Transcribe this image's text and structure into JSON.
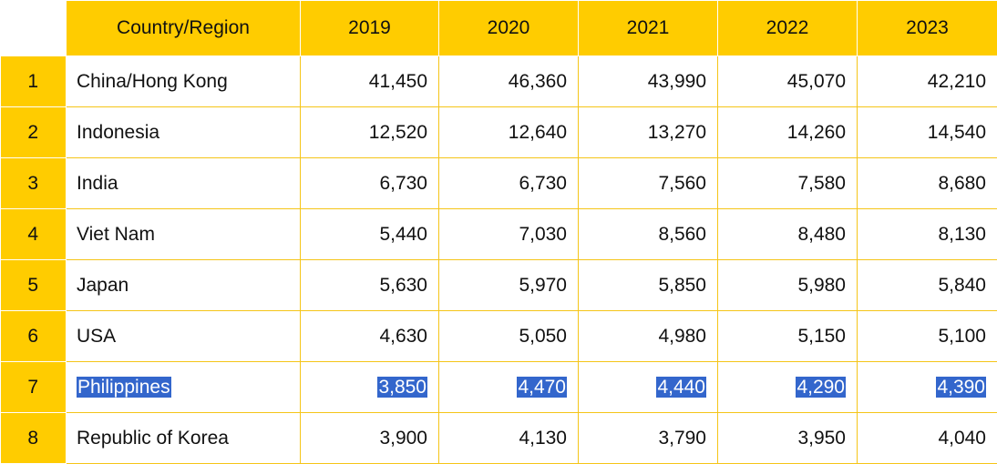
{
  "table": {
    "columns": [
      "",
      "Country/Region",
      "2019",
      "2020",
      "2021",
      "2022",
      "2023"
    ],
    "rows": [
      {
        "rank": "1",
        "country": "China/Hong Kong",
        "values": [
          "41,450",
          "46,360",
          "43,990",
          "45,070",
          "42,210"
        ]
      },
      {
        "rank": "2",
        "country": "Indonesia",
        "values": [
          "12,520",
          "12,640",
          "13,270",
          "14,260",
          "14,540"
        ]
      },
      {
        "rank": "3",
        "country": "India",
        "values": [
          "6,730",
          "6,730",
          "7,560",
          "7,580",
          "8,680"
        ]
      },
      {
        "rank": "4",
        "country": "Viet Nam",
        "values": [
          "5,440",
          "7,030",
          "8,560",
          "8,480",
          "8,130"
        ]
      },
      {
        "rank": "5",
        "country": "Japan",
        "values": [
          "5,630",
          "5,970",
          "5,850",
          "5,980",
          "5,840"
        ]
      },
      {
        "rank": "6",
        "country": "USA",
        "values": [
          "4,630",
          "5,050",
          "4,980",
          "5,150",
          "5,100"
        ]
      },
      {
        "rank": "7",
        "country": "Philippines",
        "values": [
          "3,850",
          "4,470",
          "4,440",
          "4,290",
          "4,390"
        ],
        "selected": true
      },
      {
        "rank": "8",
        "country": "Republic of Korea",
        "values": [
          "3,900",
          "4,130",
          "3,790",
          "3,950",
          "4,040"
        ]
      }
    ]
  },
  "colors": {
    "header": "#ffcc00",
    "border": "#f5c518",
    "selection": "#3366cc"
  }
}
